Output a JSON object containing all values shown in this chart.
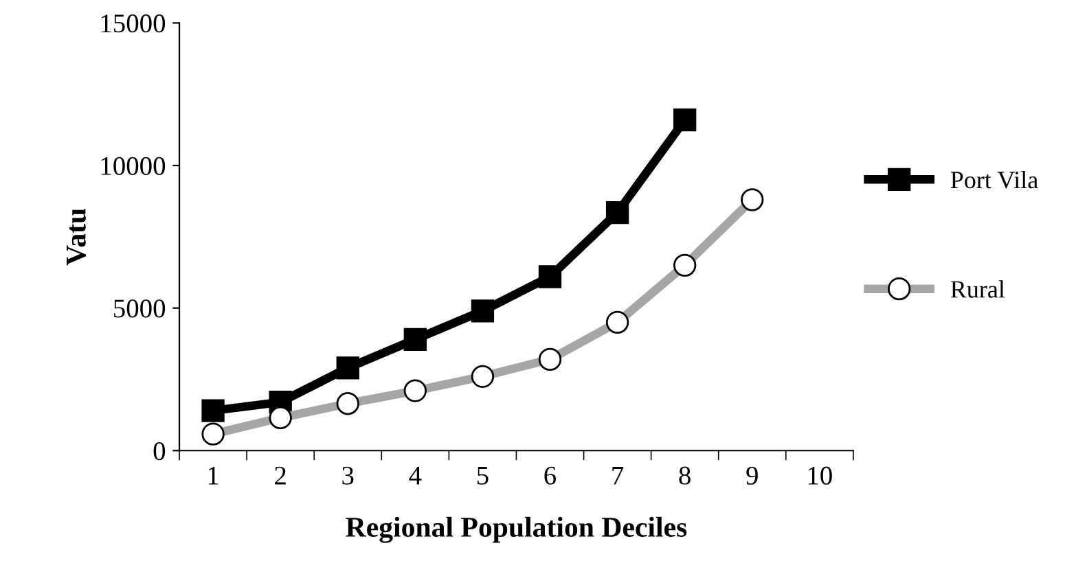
{
  "chart_data": {
    "type": "line",
    "xlabel": "Regional Population Deciles",
    "ylabel": "Vatu",
    "categories": [
      "1",
      "2",
      "3",
      "4",
      "5",
      "6",
      "7",
      "8",
      "9",
      "10"
    ],
    "series": [
      {
        "name": "Port Vila",
        "color": "#000000",
        "marker": "square",
        "values": [
          1400,
          1700,
          2900,
          3900,
          4900,
          6100,
          8350,
          11600,
          null,
          null
        ]
      },
      {
        "name": "Rural",
        "color": "#a6a6a6",
        "marker": "circle",
        "values": [
          580,
          1150,
          1650,
          2100,
          2600,
          3200,
          4500,
          6500,
          8800,
          null
        ]
      }
    ],
    "ylim": [
      0,
      15000
    ],
    "yticks": [
      0,
      5000,
      10000,
      15000
    ],
    "grid": false,
    "legend": "right",
    "line_style": "solid"
  }
}
